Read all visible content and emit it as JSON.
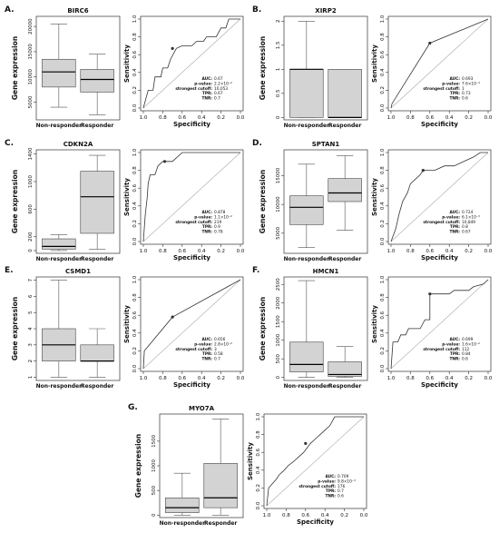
{
  "chart_data": [
    {
      "panel_label": "A.",
      "gene": "BIRC6",
      "type": "box",
      "ylabel": "Gene expression",
      "yticks": [
        5000,
        10000,
        15000,
        20000
      ],
      "ylim": [
        1500,
        22000
      ],
      "categories": [
        "Non-responder",
        "Responder"
      ],
      "boxes": [
        {
          "min": 4000,
          "q1": 8000,
          "median": 11000,
          "q3": 13500,
          "max": 20500
        },
        {
          "min": 2500,
          "q1": 7000,
          "median": 9500,
          "q3": 11500,
          "max": 14500
        }
      ],
      "roc": {
        "xlabel": "Specificity",
        "ylabel": "Sensitivity",
        "xticks": [
          "1.0",
          "0.8",
          "0.6",
          "0.4",
          "0.2",
          "0.0"
        ],
        "yticks": [
          "0.0",
          "0.2",
          "0.4",
          "0.6",
          "0.8",
          "1.0"
        ],
        "points": [
          [
            1,
            0
          ],
          [
            0.95,
            0.2
          ],
          [
            0.9,
            0.2
          ],
          [
            0.88,
            0.35
          ],
          [
            0.82,
            0.35
          ],
          [
            0.8,
            0.45
          ],
          [
            0.75,
            0.45
          ],
          [
            0.72,
            0.55
          ],
          [
            0.66,
            0.67
          ],
          [
            0.6,
            0.7
          ],
          [
            0.5,
            0.7
          ],
          [
            0.45,
            0.75
          ],
          [
            0.38,
            0.75
          ],
          [
            0.35,
            0.8
          ],
          [
            0.25,
            0.8
          ],
          [
            0.2,
            0.9
          ],
          [
            0.15,
            0.9
          ],
          [
            0.12,
            1.0
          ],
          [
            0,
            1.0
          ]
        ],
        "cutoff": [
          0.7,
          0.67
        ],
        "stats": [
          {
            "label": "AUC:",
            "value": "0.67"
          },
          {
            "label": "p-value:",
            "value": "2.2×10⁻²"
          },
          {
            "label": "strongest cutoff:",
            "value": "10,053"
          },
          {
            "label": "TPR:",
            "value": "0.67"
          },
          {
            "label": "TNR:",
            "value": "0.7"
          }
        ]
      }
    },
    {
      "panel_label": "B.",
      "gene": "XIRP2",
      "type": "box",
      "ylabel": "Gene expression",
      "yticks": [
        0.0,
        0.5,
        1.0,
        1.5,
        2.0
      ],
      "ylim": [
        -0.05,
        2.1
      ],
      "categories": [
        "Non-responder",
        "Responder"
      ],
      "boxes": [
        {
          "min": 0,
          "q1": 0,
          "median": 1,
          "q3": 1,
          "max": 2
        },
        {
          "min": 0,
          "q1": 0,
          "median": 0,
          "q3": 1,
          "max": 1
        }
      ],
      "roc": {
        "xlabel": "Specificity",
        "ylabel": "Sensitivity",
        "xticks": [
          "1.0",
          "0.8",
          "0.6",
          "0.4",
          "0.2",
          "0.0"
        ],
        "yticks": [
          "0.0",
          "0.2",
          "0.4",
          "0.6",
          "0.8",
          "1.0"
        ],
        "points": [
          [
            1,
            0
          ],
          [
            0.99,
            0.05
          ],
          [
            0.6,
            0.73
          ],
          [
            0,
            1
          ]
        ],
        "cutoff": [
          0.6,
          0.73
        ],
        "stats": [
          {
            "label": "AUC:",
            "value": "0.693"
          },
          {
            "label": "p-value:",
            "value": "7.6×10⁻³"
          },
          {
            "label": "strongest cutoff:",
            "value": "1"
          },
          {
            "label": "TPR:",
            "value": "0.73"
          },
          {
            "label": "TNR:",
            "value": "0.6"
          }
        ]
      }
    },
    {
      "panel_label": "C.",
      "gene": "CDKN2A",
      "type": "box",
      "ylabel": "Gene expression",
      "yticks": [
        0,
        200,
        600,
        1000,
        1400
      ],
      "ylim": [
        -40,
        1460
      ],
      "categories": [
        "Non-responder",
        "Responder"
      ],
      "boxes": [
        {
          "min": 0,
          "q1": 20,
          "median": 60,
          "q3": 170,
          "max": 230
        },
        {
          "min": 20,
          "q1": 250,
          "median": 780,
          "q3": 1150,
          "max": 1380
        }
      ],
      "roc": {
        "xlabel": "Specificity",
        "ylabel": "Sensitivity",
        "xticks": [
          "1.0",
          "0.8",
          "0.6",
          "0.4",
          "0.2",
          "0.0"
        ],
        "yticks": [
          "0.0",
          "0.2",
          "0.4",
          "0.6",
          "0.8",
          "1.0"
        ],
        "points": [
          [
            1,
            0
          ],
          [
            0.98,
            0.3
          ],
          [
            0.96,
            0.5
          ],
          [
            0.95,
            0.65
          ],
          [
            0.93,
            0.75
          ],
          [
            0.88,
            0.75
          ],
          [
            0.85,
            0.85
          ],
          [
            0.8,
            0.9
          ],
          [
            0.7,
            0.9
          ],
          [
            0.6,
            1.0
          ],
          [
            0,
            1
          ]
        ],
        "cutoff": [
          0.78,
          0.9
        ],
        "stats": [
          {
            "label": "AUC:",
            "value": "0.878"
          },
          {
            "label": "p-value:",
            "value": "1.1×10⁻²"
          },
          {
            "label": "strongest cutoff:",
            "value": "219"
          },
          {
            "label": "TPR:",
            "value": "0.9"
          },
          {
            "label": "TNR:",
            "value": "0.78"
          }
        ]
      }
    },
    {
      "panel_label": "D.",
      "gene": "SPTAN1",
      "type": "box",
      "ylabel": "Gene expression",
      "yticks": [
        5000,
        10000,
        15000
      ],
      "ylim": [
        1500,
        19500
      ],
      "categories": [
        "Non-responder",
        "Responder"
      ],
      "boxes": [
        {
          "min": 2500,
          "q1": 6500,
          "median": 9500,
          "q3": 11500,
          "max": 17000
        },
        {
          "min": 5500,
          "q1": 10500,
          "median": 12000,
          "q3": 14500,
          "max": 18500
        }
      ],
      "roc": {
        "xlabel": "Specificity",
        "ylabel": "Sensitivity",
        "xticks": [
          "1.0",
          "0.8",
          "0.6",
          "0.4",
          "0.2",
          "0.0"
        ],
        "yticks": [
          "0.0",
          "0.2",
          "0.4",
          "0.6",
          "0.8",
          "1.0"
        ],
        "points": [
          [
            1,
            0
          ],
          [
            0.95,
            0.15
          ],
          [
            0.92,
            0.3
          ],
          [
            0.88,
            0.45
          ],
          [
            0.83,
            0.55
          ],
          [
            0.8,
            0.65
          ],
          [
            0.75,
            0.7
          ],
          [
            0.7,
            0.75
          ],
          [
            0.67,
            0.8
          ],
          [
            0.55,
            0.8
          ],
          [
            0.45,
            0.85
          ],
          [
            0.35,
            0.85
          ],
          [
            0.25,
            0.9
          ],
          [
            0.15,
            0.95
          ],
          [
            0.08,
            1.0
          ],
          [
            0,
            1
          ]
        ],
        "cutoff": [
          0.67,
          0.8
        ],
        "stats": [
          {
            "label": "AUC:",
            "value": "0.724"
          },
          {
            "label": "p-value:",
            "value": "6.1×10⁻³"
          },
          {
            "label": "strongest cutoff:",
            "value": "10,849"
          },
          {
            "label": "TPR:",
            "value": "0.8"
          },
          {
            "label": "TNR:",
            "value": "0.67"
          }
        ]
      }
    },
    {
      "panel_label": "E.",
      "gene": "CSMD1",
      "type": "box",
      "ylabel": "Gene expression",
      "yticks": [
        1,
        2,
        3,
        4,
        5,
        6,
        7
      ],
      "ylim": [
        0.8,
        7.2
      ],
      "categories": [
        "Non-responder",
        "Responder"
      ],
      "boxes": [
        {
          "min": 1,
          "q1": 2,
          "median": 3,
          "q3": 4,
          "max": 7
        },
        {
          "min": 1,
          "q1": 2,
          "median": 2,
          "q3": 3,
          "max": 4
        }
      ],
      "roc": {
        "xlabel": "Specificity",
        "ylabel": "Sensitivity",
        "xticks": [
          "1.0",
          "0.8",
          "0.6",
          "0.4",
          "0.2",
          "0.0"
        ],
        "yticks": [
          "0.0",
          "0.2",
          "0.4",
          "0.6",
          "0.8",
          "1.0"
        ],
        "points": [
          [
            1,
            0
          ],
          [
            0.99,
            0.2
          ],
          [
            0.7,
            0.58
          ],
          [
            0,
            1
          ]
        ],
        "cutoff": [
          0.7,
          0.58
        ],
        "stats": [
          {
            "label": "AUC:",
            "value": "0.656"
          },
          {
            "label": "p-value:",
            "value": "2.8×10⁻²"
          },
          {
            "label": "strongest cutoff:",
            "value": "3"
          },
          {
            "label": "TPR:",
            "value": "0.58"
          },
          {
            "label": "TNR:",
            "value": "0.7"
          }
        ]
      }
    },
    {
      "panel_label": "F.",
      "gene": "HMCN1",
      "type": "box",
      "ylabel": "Gene expression",
      "yticks": [
        0,
        500,
        1000,
        1500,
        2000,
        2500
      ],
      "ylim": [
        -80,
        2700
      ],
      "categories": [
        "Non-responder",
        "Responder"
      ],
      "boxes": [
        {
          "min": 0,
          "q1": 150,
          "median": 350,
          "q3": 950,
          "max": 2600
        },
        {
          "min": 0,
          "q1": 30,
          "median": 80,
          "q3": 420,
          "max": 830
        }
      ],
      "roc": {
        "xlabel": "Specificity",
        "ylabel": "Sensitivity",
        "xticks": [
          "1.0",
          "0.8",
          "0.6",
          "0.4",
          "0.2",
          "0.0"
        ],
        "yticks": [
          "0.0",
          "0.2",
          "0.4",
          "0.6",
          "0.8",
          "1.0"
        ],
        "points": [
          [
            1,
            0
          ],
          [
            0.98,
            0.3
          ],
          [
            0.93,
            0.3
          ],
          [
            0.9,
            0.38
          ],
          [
            0.85,
            0.38
          ],
          [
            0.82,
            0.45
          ],
          [
            0.7,
            0.45
          ],
          [
            0.65,
            0.55
          ],
          [
            0.6,
            0.55
          ],
          [
            0.6,
            0.84
          ],
          [
            0.4,
            0.84
          ],
          [
            0.35,
            0.88
          ],
          [
            0.2,
            0.88
          ],
          [
            0.15,
            0.92
          ],
          [
            0.05,
            0.95
          ],
          [
            0,
            1
          ]
        ],
        "cutoff": [
          0.6,
          0.84
        ],
        "stats": [
          {
            "label": "AUC:",
            "value": "0.699"
          },
          {
            "label": "p-value:",
            "value": "1.6×10⁻²"
          },
          {
            "label": "strongest cutoff:",
            "value": "112"
          },
          {
            "label": "TPR:",
            "value": "0.84"
          },
          {
            "label": "TNR:",
            "value": "0.6"
          }
        ]
      }
    },
    {
      "panel_label": "G.",
      "gene": "MYO7A",
      "type": "box",
      "ylabel": "Gene expression",
      "yticks": [
        0,
        500,
        1000,
        1500
      ],
      "ylim": [
        -50,
        2050
      ],
      "categories": [
        "Non-responder",
        "Responder"
      ],
      "boxes": [
        {
          "min": 0,
          "q1": 50,
          "median": 150,
          "q3": 350,
          "max": 850
        },
        {
          "min": 0,
          "q1": 150,
          "median": 350,
          "q3": 1050,
          "max": 1950
        }
      ],
      "roc": {
        "xlabel": "Specificity",
        "ylabel": "Sensitivity",
        "xticks": [
          "1.0",
          "0.8",
          "0.6",
          "0.4",
          "0.2",
          "0.0"
        ],
        "yticks": [
          "0.0",
          "0.2",
          "0.4",
          "0.6",
          "0.8",
          "1.0"
        ],
        "points": [
          [
            1,
            0
          ],
          [
            0.98,
            0.2
          ],
          [
            0.9,
            0.3
          ],
          [
            0.87,
            0.35
          ],
          [
            0.82,
            0.4
          ],
          [
            0.78,
            0.45
          ],
          [
            0.72,
            0.5
          ],
          [
            0.67,
            0.55
          ],
          [
            0.62,
            0.6
          ],
          [
            0.55,
            0.7
          ],
          [
            0.5,
            0.75
          ],
          [
            0.45,
            0.8
          ],
          [
            0.4,
            0.85
          ],
          [
            0.35,
            0.9
          ],
          [
            0.3,
            1.0
          ],
          [
            0,
            1
          ]
        ],
        "cutoff": [
          0.6,
          0.7
        ],
        "stats": [
          {
            "label": "AUC:",
            "value": "0.709"
          },
          {
            "label": "p-value:",
            "value": "9.8×10⁻³"
          },
          {
            "label": "strongest cutoff:",
            "value": "176"
          },
          {
            "label": "TPR:",
            "value": "0.7"
          },
          {
            "label": "TNR:",
            "value": "0.6"
          }
        ]
      }
    }
  ]
}
